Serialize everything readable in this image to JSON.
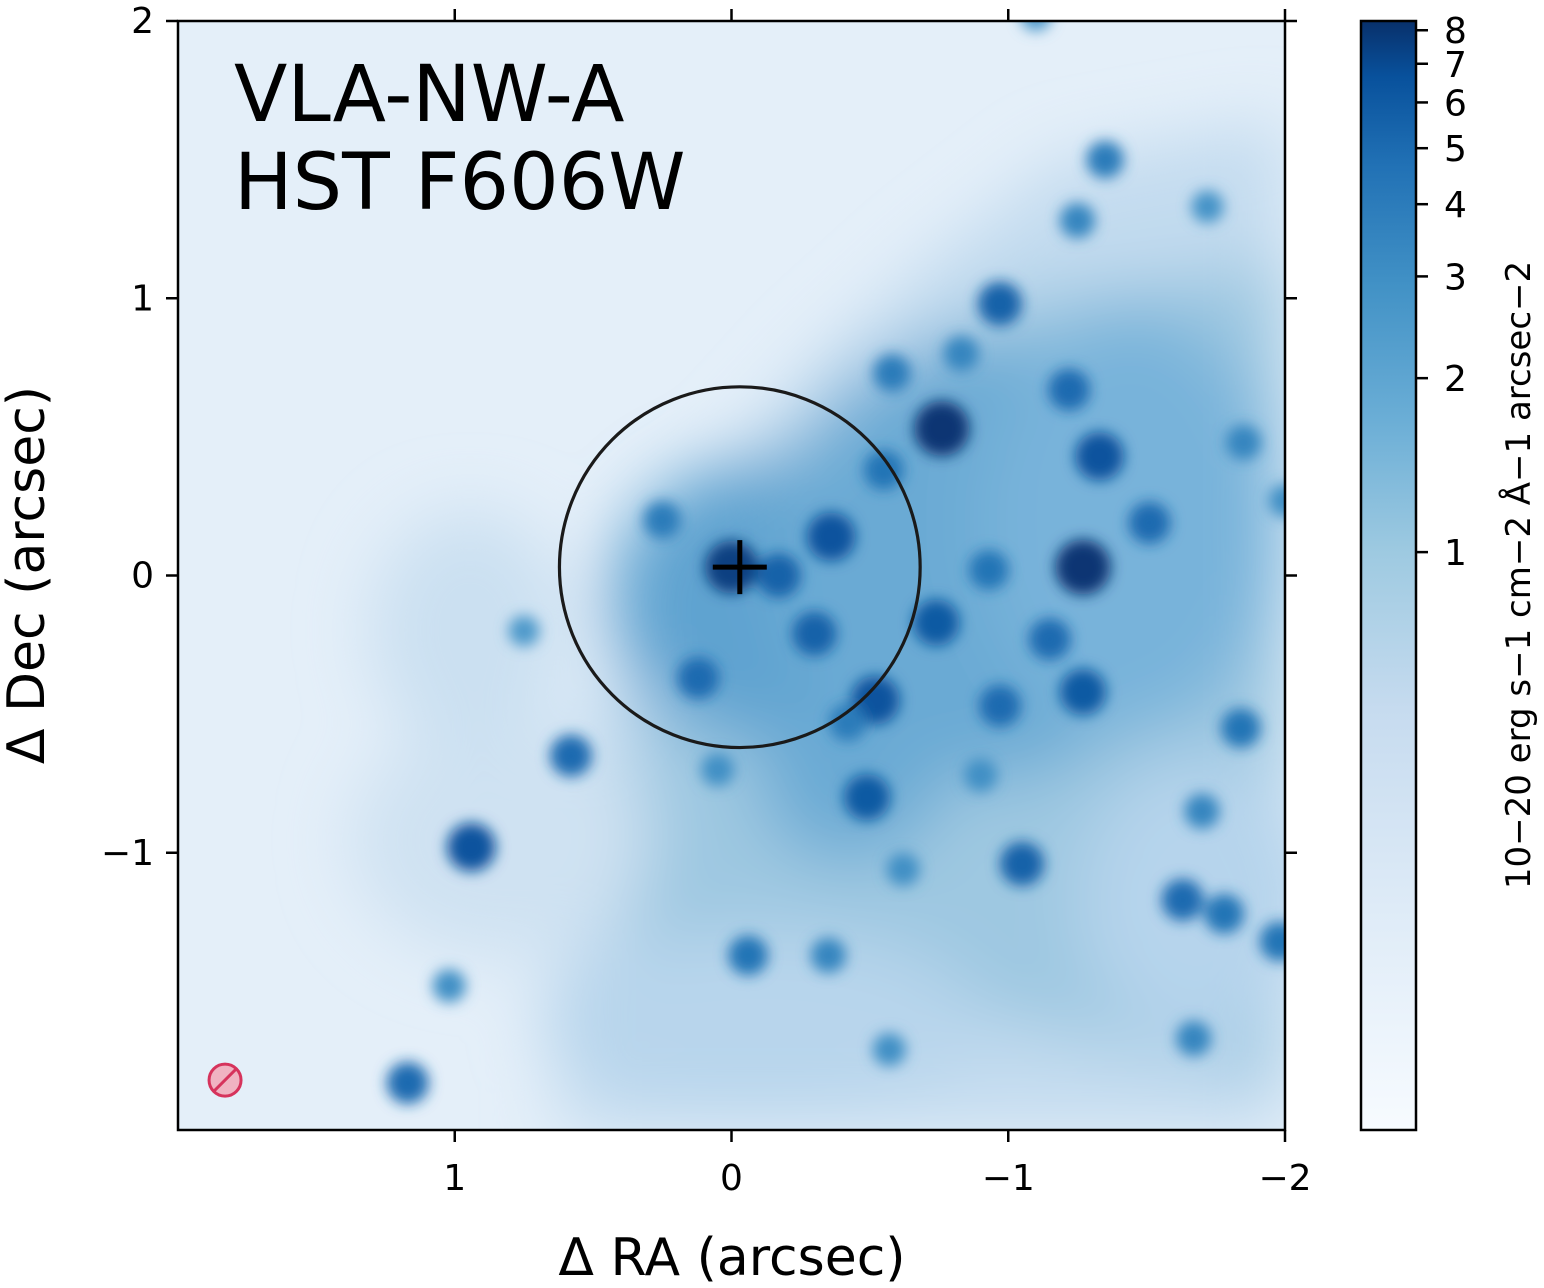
{
  "chart_data": {
    "type": "heatmap",
    "title_lines": [
      "VLA-NW-A",
      "HST F606W"
    ],
    "xlabel": "Δ RA (arcsec)",
    "ylabel": "Δ Dec (arcsec)",
    "xlim": [
      2,
      -2
    ],
    "ylim": [
      -2,
      2
    ],
    "x_ticks": [
      1,
      0,
      -1,
      -2
    ],
    "x_tick_labels": [
      "1",
      "0",
      "−1",
      "−2"
    ],
    "y_ticks": [
      2,
      1,
      0,
      -1
    ],
    "y_tick_labels": [
      "2",
      "1",
      "0",
      "−1"
    ],
    "colormap": "Blues",
    "colorbar": {
      "label": "10−20 erg s−1 cm−2 Å−1 arcsec−2",
      "scale": "log",
      "range": [
        0.1,
        8.3
      ],
      "ticks": [
        1,
        2,
        3,
        4,
        5,
        6,
        7,
        8
      ],
      "tick_labels": [
        "1",
        "2",
        "3",
        "4",
        "5",
        "6",
        "7",
        "8"
      ]
    },
    "aperture": {
      "center_ra": -0.03,
      "center_dec": 0.03,
      "radius_arcsec": 0.65,
      "color": "#1a1a1a"
    },
    "center_marker": {
      "ra": -0.03,
      "dec": 0.03,
      "symbol": "+",
      "color": "#000000"
    },
    "beam_symbol": {
      "ra": 1.83,
      "dec": -1.82,
      "color": "#d6335c"
    },
    "sources": [
      {
        "ra": -0.76,
        "dec": 0.53,
        "flux": 8.0
      },
      {
        "ra": -1.27,
        "dec": 0.03,
        "flux": 8.0
      },
      {
        "ra": -1.33,
        "dec": 0.43,
        "flux": 6.5
      },
      {
        "ra": -0.36,
        "dec": 0.14,
        "flux": 6.5
      },
      {
        "ra": -0.3,
        "dec": -0.21,
        "flux": 5.5
      },
      {
        "ra": -0.52,
        "dec": -0.45,
        "flux": 6.5
      },
      {
        "ra": -0.49,
        "dec": -0.8,
        "flux": 6.0
      },
      {
        "ra": -0.74,
        "dec": -0.17,
        "flux": 6.0
      },
      {
        "ra": -0.97,
        "dec": 0.98,
        "flux": 5.5
      },
      {
        "ra": -1.22,
        "dec": 0.67,
        "flux": 5.0
      },
      {
        "ra": -1.51,
        "dec": 0.19,
        "flux": 5.0
      },
      {
        "ra": -1.27,
        "dec": -0.42,
        "flux": 6.0
      },
      {
        "ra": -0.97,
        "dec": -0.47,
        "flux": 5.0
      },
      {
        "ra": -1.05,
        "dec": -1.04,
        "flux": 5.5
      },
      {
        "ra": -1.15,
        "dec": -0.23,
        "flux": 5.0
      },
      {
        "ra": -1.63,
        "dec": -1.17,
        "flux": 5.0
      },
      {
        "ra": -1.78,
        "dec": -1.22,
        "flux": 4.5
      },
      {
        "ra": -1.98,
        "dec": -1.32,
        "flux": 4.5
      },
      {
        "ra": -1.84,
        "dec": -0.55,
        "flux": 4.5
      },
      {
        "ra": 0.94,
        "dec": -0.98,
        "flux": 6.5
      },
      {
        "ra": 0.58,
        "dec": -0.65,
        "flux": 5.0
      },
      {
        "ra": 1.17,
        "dec": -1.83,
        "flux": 5.0
      },
      {
        "ra": -0.06,
        "dec": -1.37,
        "flux": 4.5
      },
      {
        "ra": -1.35,
        "dec": 1.5,
        "flux": 4.0
      },
      {
        "ra": -1.25,
        "dec": 1.28,
        "flux": 3.5
      },
      {
        "ra": 0.0,
        "dec": 0.03,
        "flux": 7.5
      },
      {
        "ra": 0.12,
        "dec": -0.37,
        "flux": 5.0
      },
      {
        "ra": -0.55,
        "dec": 0.38,
        "flux": 4.5
      },
      {
        "ra": -0.58,
        "dec": 0.73,
        "flux": 4.0
      },
      {
        "ra": -0.83,
        "dec": 0.8,
        "flux": 3.5
      },
      {
        "ra": -0.93,
        "dec": 0.02,
        "flux": 4.5
      },
      {
        "ra": -1.85,
        "dec": 0.48,
        "flux": 3.5
      },
      {
        "ra": -1.7,
        "dec": -0.85,
        "flux": 3.5
      },
      {
        "ra": -0.17,
        "dec": 0.0,
        "flux": 5.5
      },
      {
        "ra": 0.25,
        "dec": 0.2,
        "flux": 4.0
      },
      {
        "ra": -1.67,
        "dec": -1.67,
        "flux": 3.5
      },
      {
        "ra": -0.57,
        "dec": -1.71,
        "flux": 3.0
      },
      {
        "ra": -0.35,
        "dec": -1.37,
        "flux": 3.5
      },
      {
        "ra": 0.75,
        "dec": -0.2,
        "flux": 2.5
      },
      {
        "ra": 1.02,
        "dec": -1.48,
        "flux": 3.0
      },
      {
        "ra": -1.1,
        "dec": 2.02,
        "flux": 2.5
      },
      {
        "ra": -2.0,
        "dec": 0.27,
        "flux": 3.0
      },
      {
        "ra": -1.72,
        "dec": 1.33,
        "flux": 2.8
      },
      {
        "ra": -0.9,
        "dec": -0.72,
        "flux": 3.0
      },
      {
        "ra": -0.62,
        "dec": -1.06,
        "flux": 3.0
      },
      {
        "ra": -0.42,
        "dec": -0.53,
        "flux": 4.0
      },
      {
        "ra": 0.05,
        "dec": -0.7,
        "flux": 3.0
      }
    ]
  }
}
